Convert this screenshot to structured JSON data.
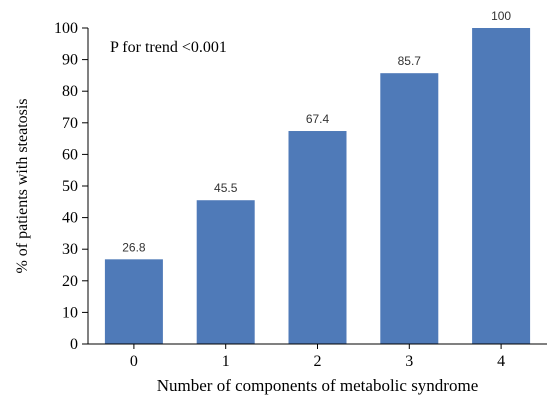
{
  "chart_data": {
    "type": "bar",
    "categories": [
      "0",
      "1",
      "2",
      "3",
      "4"
    ],
    "values": [
      26.8,
      45.5,
      67.4,
      85.7,
      100
    ],
    "data_labels": [
      "26.8",
      "45.5",
      "67.4",
      "85.7",
      "100"
    ],
    "xlabel": "Number of components of metabolic syndrome",
    "ylabel": "% of patients with steatosis",
    "ylim": [
      0,
      100
    ],
    "yticks": [
      0,
      10,
      20,
      30,
      40,
      50,
      60,
      70,
      80,
      90,
      100
    ],
    "annotation": "P for trend <0.001",
    "grid": false,
    "bar_color": "#4f7ab8",
    "axis_color": "#000000"
  }
}
